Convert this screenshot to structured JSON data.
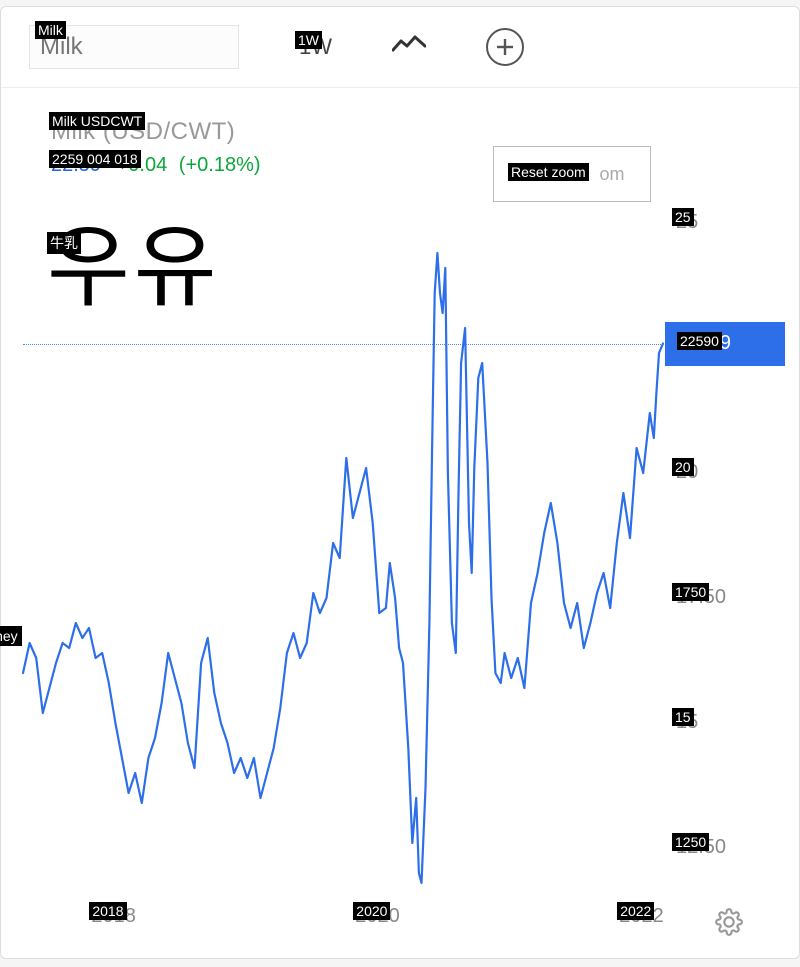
{
  "toolbar": {
    "search_placeholder": "Milk",
    "search_badge": "Milk",
    "timeframe": "1W",
    "timeframe_display": "1W",
    "chart_type_icon": "line-chart-icon",
    "add_icon": "plus-icon"
  },
  "header": {
    "title_gray": "Milk (USD/CWT)",
    "title_badge": "Milk USDCWT",
    "price": "22.59",
    "price_change": "+0.04",
    "price_pct": "(+0.18%)",
    "under_badge": "2259 004 018"
  },
  "reset_zoom": {
    "label": "Reset zoom",
    "hint_suffix": "om"
  },
  "korean_overlay": "우유",
  "japanese_badge": "牛乳",
  "side_label": "whey",
  "chart": {
    "type": "line",
    "line_color": "#2d6fe8",
    "line_width": 2.2,
    "background": "#ffffff",
    "current_value": 22.59,
    "current_badge": "22590",
    "ymin": 11.5,
    "ymax": 25.5,
    "y_ticks": [
      {
        "v": 25,
        "label": "25",
        "badge": "25"
      },
      {
        "v": 20,
        "label": "20",
        "badge": "20"
      },
      {
        "v": 17.5,
        "label": "17.50",
        "badge": "1750"
      },
      {
        "v": 15,
        "label": "15",
        "badge": "15"
      },
      {
        "v": 12.5,
        "label": "12.50",
        "badge": "1250"
      }
    ],
    "x_start": 2017.3,
    "x_end": 2022.15,
    "x_ticks": [
      {
        "v": 2018,
        "label": "2018",
        "badge": "2018"
      },
      {
        "v": 2020,
        "label": "2020",
        "badge": "2020"
      },
      {
        "v": 2022,
        "label": "2022",
        "badge": "2022"
      }
    ],
    "series": [
      [
        2017.3,
        16.0
      ],
      [
        2017.35,
        16.6
      ],
      [
        2017.4,
        16.3
      ],
      [
        2017.45,
        15.2
      ],
      [
        2017.5,
        15.7
      ],
      [
        2017.55,
        16.2
      ],
      [
        2017.6,
        16.6
      ],
      [
        2017.65,
        16.5
      ],
      [
        2017.7,
        17.0
      ],
      [
        2017.75,
        16.7
      ],
      [
        2017.8,
        16.9
      ],
      [
        2017.85,
        16.3
      ],
      [
        2017.9,
        16.4
      ],
      [
        2017.95,
        15.8
      ],
      [
        2018.0,
        15.0
      ],
      [
        2018.05,
        14.3
      ],
      [
        2018.1,
        13.6
      ],
      [
        2018.15,
        14.0
      ],
      [
        2018.2,
        13.4
      ],
      [
        2018.25,
        14.3
      ],
      [
        2018.3,
        14.7
      ],
      [
        2018.35,
        15.4
      ],
      [
        2018.4,
        16.4
      ],
      [
        2018.45,
        15.9
      ],
      [
        2018.5,
        15.4
      ],
      [
        2018.55,
        14.6
      ],
      [
        2018.6,
        14.1
      ],
      [
        2018.65,
        16.2
      ],
      [
        2018.7,
        16.7
      ],
      [
        2018.75,
        15.6
      ],
      [
        2018.8,
        15.0
      ],
      [
        2018.85,
        14.6
      ],
      [
        2018.9,
        14.0
      ],
      [
        2018.95,
        14.3
      ],
      [
        2019.0,
        13.9
      ],
      [
        2019.05,
        14.3
      ],
      [
        2019.1,
        13.5
      ],
      [
        2019.15,
        14.0
      ],
      [
        2019.2,
        14.5
      ],
      [
        2019.25,
        15.3
      ],
      [
        2019.3,
        16.4
      ],
      [
        2019.35,
        16.8
      ],
      [
        2019.4,
        16.3
      ],
      [
        2019.45,
        16.6
      ],
      [
        2019.5,
        17.6
      ],
      [
        2019.55,
        17.2
      ],
      [
        2019.6,
        17.5
      ],
      [
        2019.65,
        18.6
      ],
      [
        2019.7,
        18.3
      ],
      [
        2019.75,
        20.3
      ],
      [
        2019.8,
        19.1
      ],
      [
        2019.85,
        19.6
      ],
      [
        2019.9,
        20.1
      ],
      [
        2019.95,
        19.0
      ],
      [
        2020.0,
        17.2
      ],
      [
        2020.05,
        17.3
      ],
      [
        2020.08,
        18.2
      ],
      [
        2020.12,
        17.5
      ],
      [
        2020.15,
        16.5
      ],
      [
        2020.18,
        16.2
      ],
      [
        2020.22,
        14.5
      ],
      [
        2020.25,
        12.6
      ],
      [
        2020.28,
        13.5
      ],
      [
        2020.3,
        12.0
      ],
      [
        2020.32,
        11.8
      ],
      [
        2020.35,
        13.7
      ],
      [
        2020.38,
        17.0
      ],
      [
        2020.4,
        20.5
      ],
      [
        2020.42,
        23.6
      ],
      [
        2020.44,
        24.4
      ],
      [
        2020.46,
        23.6
      ],
      [
        2020.48,
        23.2
      ],
      [
        2020.5,
        24.1
      ],
      [
        2020.52,
        20.0
      ],
      [
        2020.55,
        17.0
      ],
      [
        2020.58,
        16.4
      ],
      [
        2020.6,
        19.6
      ],
      [
        2020.62,
        22.2
      ],
      [
        2020.65,
        22.9
      ],
      [
        2020.68,
        19.0
      ],
      [
        2020.7,
        18.0
      ],
      [
        2020.72,
        20.1
      ],
      [
        2020.75,
        21.9
      ],
      [
        2020.78,
        22.2
      ],
      [
        2020.82,
        20.2
      ],
      [
        2020.85,
        17.5
      ],
      [
        2020.88,
        16.0
      ],
      [
        2020.92,
        15.8
      ],
      [
        2020.95,
        16.4
      ],
      [
        2021.0,
        15.9
      ],
      [
        2021.05,
        16.3
      ],
      [
        2021.1,
        15.7
      ],
      [
        2021.15,
        17.4
      ],
      [
        2021.2,
        18.0
      ],
      [
        2021.25,
        18.8
      ],
      [
        2021.3,
        19.4
      ],
      [
        2021.35,
        18.6
      ],
      [
        2021.4,
        17.4
      ],
      [
        2021.45,
        16.9
      ],
      [
        2021.5,
        17.4
      ],
      [
        2021.55,
        16.5
      ],
      [
        2021.6,
        17.0
      ],
      [
        2021.65,
        17.6
      ],
      [
        2021.7,
        18.0
      ],
      [
        2021.75,
        17.3
      ],
      [
        2021.8,
        18.6
      ],
      [
        2021.85,
        19.6
      ],
      [
        2021.9,
        18.7
      ],
      [
        2021.95,
        20.5
      ],
      [
        2022.0,
        20.0
      ],
      [
        2022.05,
        21.2
      ],
      [
        2022.08,
        20.7
      ],
      [
        2022.1,
        21.6
      ],
      [
        2022.12,
        22.4
      ],
      [
        2022.15,
        22.59
      ]
    ]
  }
}
